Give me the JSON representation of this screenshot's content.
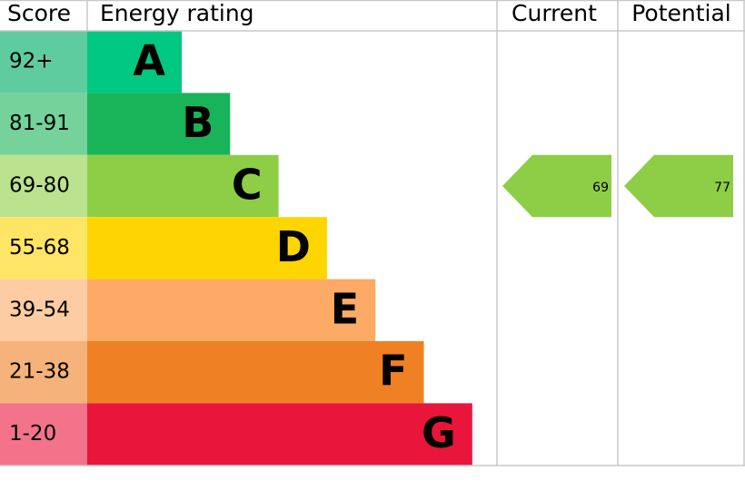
{
  "header": {
    "score": "Score",
    "rating": "Energy rating",
    "current": "Current",
    "potential": "Potential"
  },
  "bands": [
    {
      "score": "92+",
      "letter": "A",
      "color": "#00c781",
      "score_color": "#5fcca0"
    },
    {
      "score": "81-91",
      "letter": "B",
      "color": "#19b459",
      "score_color": "#75d29b"
    },
    {
      "score": "69-80",
      "letter": "C",
      "color": "#8dce46",
      "score_color": "#bbe28f"
    },
    {
      "score": "55-68",
      "letter": "D",
      "color": "#ffd500",
      "score_color": "#ffe566"
    },
    {
      "score": "39-54",
      "letter": "E",
      "color": "#fcaa65",
      "score_color": "#fdcca3"
    },
    {
      "score": "21-38",
      "letter": "F",
      "color": "#ef8023",
      "score_color": "#f5b37b"
    },
    {
      "score": "1-20",
      "letter": "G",
      "color": "#e9153b",
      "score_color": "#f2738a"
    }
  ],
  "current": 69,
  "potential": 77
}
